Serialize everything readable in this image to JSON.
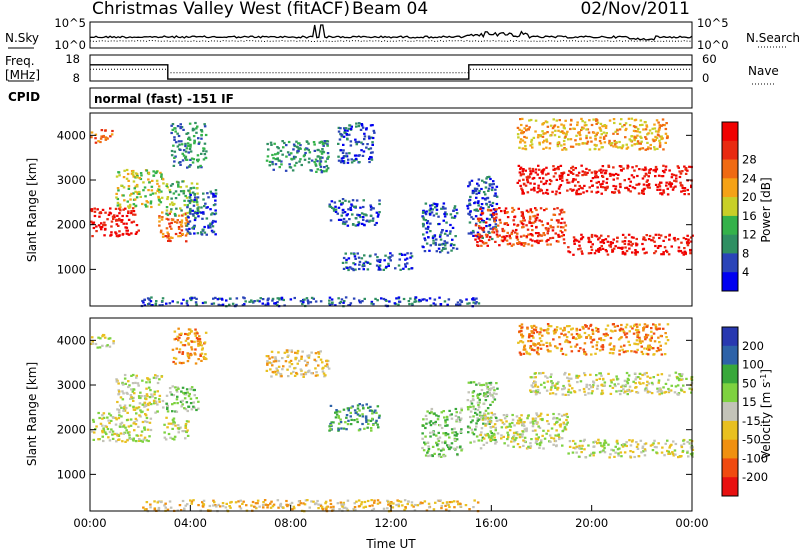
{
  "header": {
    "station": "Christmas Valley West (fitACF)",
    "beam": "Beam 04",
    "date": "02/Nov/2011"
  },
  "noise_panel": {
    "left_label": "N.Sky",
    "right_label": "N.Search",
    "left_ticks": [
      "10^5",
      "10^0"
    ],
    "right_ticks": [
      "10^5",
      "10^0"
    ]
  },
  "freq_panel": {
    "left_label_1": "Freq.",
    "left_label_2": "[MHz]",
    "right_label": "Nave",
    "left_ticks": [
      "18",
      "8"
    ],
    "right_ticks": [
      "60",
      "0"
    ],
    "freq_profile": [
      [
        0,
        15
      ],
      [
        3.1,
        15
      ],
      [
        3.1,
        9.5
      ],
      [
        15.1,
        9.5
      ],
      [
        15.1,
        15
      ],
      [
        24,
        15
      ]
    ],
    "nave_profile": [
      [
        0,
        27
      ],
      [
        3.1,
        27
      ],
      [
        3.1,
        19
      ],
      [
        15.1,
        19
      ],
      [
        15.1,
        27
      ],
      [
        24,
        27
      ]
    ]
  },
  "cpid": {
    "label": "CPID",
    "text": "normal (fast) -151 IF"
  },
  "chart_data": [
    {
      "type": "heatmap",
      "name": "power",
      "ylabel": "Slant Range [km]",
      "xlim": [
        0,
        24
      ],
      "ylim": [
        180,
        4500
      ],
      "yticks": [
        "1000",
        "2000",
        "3000",
        "4000"
      ],
      "colorbar": {
        "label": "Power [dB]",
        "ticks": [
          "4",
          "8",
          "12",
          "16",
          "20",
          "24",
          "28"
        ],
        "colors": [
          "#0000f0",
          "#2a44b8",
          "#2f8f62",
          "#34b24a",
          "#c8cf28",
          "#f5a216",
          "#f06a12",
          "#e82a10",
          "#f00000"
        ]
      },
      "regions": [
        {
          "x": [
            0,
            1.9
          ],
          "y": [
            1750,
            2400
          ],
          "level": 8
        },
        {
          "x": [
            0,
            0.9
          ],
          "y": [
            3850,
            4150
          ],
          "level": 6
        },
        {
          "x": [
            1.0,
            2.9
          ],
          "y": [
            2400,
            3250
          ],
          "level": 4
        },
        {
          "x": [
            2.7,
            3.9
          ],
          "y": [
            1650,
            2300
          ],
          "level": 6
        },
        {
          "x": [
            3.0,
            4.3
          ],
          "y": [
            2200,
            3000
          ],
          "level": 3
        },
        {
          "x": [
            3.2,
            4.6
          ],
          "y": [
            3300,
            4300
          ],
          "level": 2
        },
        {
          "x": [
            3.8,
            5.0
          ],
          "y": [
            1800,
            2800
          ],
          "level": 1
        },
        {
          "x": [
            7.0,
            9.5
          ],
          "y": [
            3200,
            3900
          ],
          "level": 2
        },
        {
          "x": [
            9.8,
            11.3
          ],
          "y": [
            3400,
            4300
          ],
          "level": 1
        },
        {
          "x": [
            9.5,
            11.5
          ],
          "y": [
            2000,
            2600
          ],
          "level": 1
        },
        {
          "x": [
            10.0,
            12.8
          ],
          "y": [
            1000,
            1400
          ],
          "level": 1
        },
        {
          "x": [
            13.2,
            14.6
          ],
          "y": [
            1400,
            2500
          ],
          "level": 1
        },
        {
          "x": [
            15.0,
            16.2
          ],
          "y": [
            1700,
            3100
          ],
          "level": 1
        },
        {
          "x": [
            15.3,
            19.0
          ],
          "y": [
            1550,
            2400
          ],
          "level": 7
        },
        {
          "x": [
            19.0,
            24.0
          ],
          "y": [
            1350,
            1800
          ],
          "level": 8
        },
        {
          "x": [
            17.0,
            24.0
          ],
          "y": [
            2700,
            3350
          ],
          "level": 8
        },
        {
          "x": [
            17.0,
            23.0
          ],
          "y": [
            3700,
            4400
          ],
          "level": 5
        },
        {
          "x": [
            2.0,
            15.5
          ],
          "y": [
            200,
            400
          ],
          "level": 1
        }
      ]
    },
    {
      "type": "heatmap",
      "name": "velocity",
      "ylabel": "Slant Range [km]",
      "xlabel": "Time UT",
      "xlim": [
        0,
        24
      ],
      "ylim": [
        180,
        4500
      ],
      "xticks": [
        "00:00",
        "04:00",
        "08:00",
        "12:00",
        "16:00",
        "20:00",
        "00:00"
      ],
      "yticks": [
        "1000",
        "2000",
        "3000",
        "4000"
      ],
      "colorbar": {
        "label": "Velocity [m s^-1]",
        "ticks": [
          "200",
          "100",
          "50",
          "15",
          "-15",
          "-50",
          "-100",
          "-200"
        ],
        "colors": [
          "#2838b0",
          "#2d62a8",
          "#38a83a",
          "#7ed240",
          "#c3c3b8",
          "#e8c020",
          "#f09010",
          "#f04a10",
          "#e81010"
        ]
      },
      "regions": [
        {
          "x": [
            0,
            2.4
          ],
          "y": [
            1750,
            2400
          ],
          "level": 4
        },
        {
          "x": [
            0,
            0.9
          ],
          "y": [
            3850,
            4150
          ],
          "level": 4
        },
        {
          "x": [
            1.0,
            2.9
          ],
          "y": [
            2400,
            3250
          ],
          "level": 4
        },
        {
          "x": [
            2.9,
            3.9
          ],
          "y": [
            1800,
            2300
          ],
          "level": 4
        },
        {
          "x": [
            3.0,
            4.3
          ],
          "y": [
            2400,
            3000
          ],
          "level": 3
        },
        {
          "x": [
            3.2,
            4.6
          ],
          "y": [
            3500,
            4300
          ],
          "level": 6
        },
        {
          "x": [
            7.0,
            9.5
          ],
          "y": [
            3200,
            3800
          ],
          "level": 5
        },
        {
          "x": [
            9.5,
            11.5
          ],
          "y": [
            2000,
            2600
          ],
          "level": 2
        },
        {
          "x": [
            13.2,
            14.8
          ],
          "y": [
            1400,
            2500
          ],
          "level": 3
        },
        {
          "x": [
            15.0,
            16.2
          ],
          "y": [
            1700,
            3100
          ],
          "level": 3
        },
        {
          "x": [
            15.5,
            19.0
          ],
          "y": [
            1600,
            2400
          ],
          "level": 4
        },
        {
          "x": [
            19.0,
            24.0
          ],
          "y": [
            1400,
            1800
          ],
          "level": 4
        },
        {
          "x": [
            17.5,
            24.0
          ],
          "y": [
            2800,
            3300
          ],
          "level": 4
        },
        {
          "x": [
            17.0,
            23.0
          ],
          "y": [
            3700,
            4400
          ],
          "level": 6
        },
        {
          "x": [
            2.0,
            15.5
          ],
          "y": [
            200,
            450
          ],
          "level": 5
        }
      ]
    }
  ]
}
